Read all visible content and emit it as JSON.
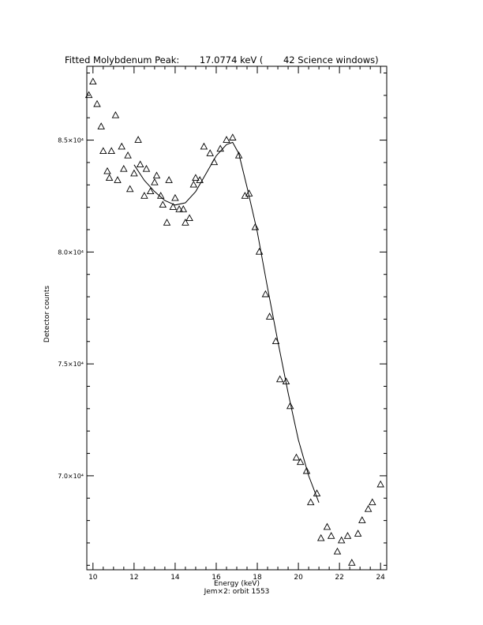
{
  "chart_data": {
    "type": "scatter",
    "title": "Fitted Molybdenum Peak:       17.0774 keV (       42 Science windows)",
    "xlabel": "Energy (keV)",
    "ylabel": "Detector counts",
    "footer": "Jem×2: orbit 1553",
    "xlim": [
      9.7,
      24.3
    ],
    "ylim": [
      65800,
      88300
    ],
    "x_ticks": [
      10,
      12,
      14,
      16,
      18,
      20,
      22,
      24
    ],
    "y_ticks": [
      {
        "value": 70000,
        "label": "7.0×10⁴"
      },
      {
        "value": 75000,
        "label": "7.5×10⁴"
      },
      {
        "value": 80000,
        "label": "8.0×10⁴"
      },
      {
        "value": 85000,
        "label": "8.5×10⁴"
      }
    ],
    "grid": false,
    "series": [
      {
        "type": "scatter",
        "marker": "triangle",
        "points": [
          [
            9.8,
            87000
          ],
          [
            10.0,
            87600
          ],
          [
            10.2,
            86600
          ],
          [
            10.4,
            85600
          ],
          [
            10.5,
            84500
          ],
          [
            10.7,
            83600
          ],
          [
            10.8,
            83300
          ],
          [
            10.9,
            84500
          ],
          [
            11.1,
            86100
          ],
          [
            11.2,
            83200
          ],
          [
            11.4,
            84700
          ],
          [
            11.5,
            83700
          ],
          [
            11.7,
            84300
          ],
          [
            11.8,
            82800
          ],
          [
            12.0,
            83500
          ],
          [
            12.2,
            85000
          ],
          [
            12.3,
            83900
          ],
          [
            12.5,
            82500
          ],
          [
            12.6,
            83700
          ],
          [
            12.8,
            82700
          ],
          [
            13.0,
            83100
          ],
          [
            13.1,
            83400
          ],
          [
            13.3,
            82500
          ],
          [
            13.4,
            82100
          ],
          [
            13.6,
            81300
          ],
          [
            13.7,
            83200
          ],
          [
            13.9,
            82000
          ],
          [
            14.0,
            82400
          ],
          [
            14.2,
            81900
          ],
          [
            14.4,
            81900
          ],
          [
            14.5,
            81300
          ],
          [
            14.7,
            81500
          ],
          [
            14.9,
            83000
          ],
          [
            15.0,
            83300
          ],
          [
            15.2,
            83200
          ],
          [
            15.4,
            84700
          ],
          [
            15.7,
            84400
          ],
          [
            15.9,
            84000
          ],
          [
            16.2,
            84600
          ],
          [
            16.5,
            85000
          ],
          [
            16.8,
            85100
          ],
          [
            17.1,
            84300
          ],
          [
            17.4,
            82500
          ],
          [
            17.6,
            82600
          ],
          [
            17.9,
            81100
          ],
          [
            18.1,
            80000
          ],
          [
            18.4,
            78100
          ],
          [
            18.6,
            77100
          ],
          [
            18.9,
            76000
          ],
          [
            19.1,
            74300
          ],
          [
            19.4,
            74200
          ],
          [
            19.6,
            73100
          ],
          [
            19.9,
            70800
          ],
          [
            20.1,
            70600
          ],
          [
            20.4,
            70200
          ],
          [
            20.6,
            68800
          ],
          [
            20.9,
            69200
          ],
          [
            21.1,
            67200
          ],
          [
            21.4,
            67700
          ],
          [
            21.6,
            67300
          ],
          [
            21.9,
            66600
          ],
          [
            22.1,
            67100
          ],
          [
            22.4,
            67300
          ],
          [
            22.6,
            66100
          ],
          [
            22.9,
            67400
          ],
          [
            23.1,
            68000
          ],
          [
            23.4,
            68500
          ],
          [
            23.6,
            68800
          ],
          [
            24.0,
            69600
          ]
        ]
      },
      {
        "type": "line",
        "points": [
          [
            12.0,
            83900
          ],
          [
            12.5,
            83200
          ],
          [
            13.0,
            82700
          ],
          [
            13.5,
            82300
          ],
          [
            14.0,
            82100
          ],
          [
            14.5,
            82200
          ],
          [
            15.0,
            82700
          ],
          [
            15.5,
            83500
          ],
          [
            16.0,
            84300
          ],
          [
            16.5,
            84800
          ],
          [
            16.8,
            84900
          ],
          [
            17.1,
            84400
          ],
          [
            17.5,
            82900
          ],
          [
            18.0,
            80900
          ],
          [
            18.5,
            78400
          ],
          [
            19.0,
            76000
          ],
          [
            19.5,
            73700
          ],
          [
            20.0,
            71600
          ],
          [
            20.5,
            70000
          ],
          [
            21.0,
            68800
          ]
        ]
      }
    ]
  }
}
